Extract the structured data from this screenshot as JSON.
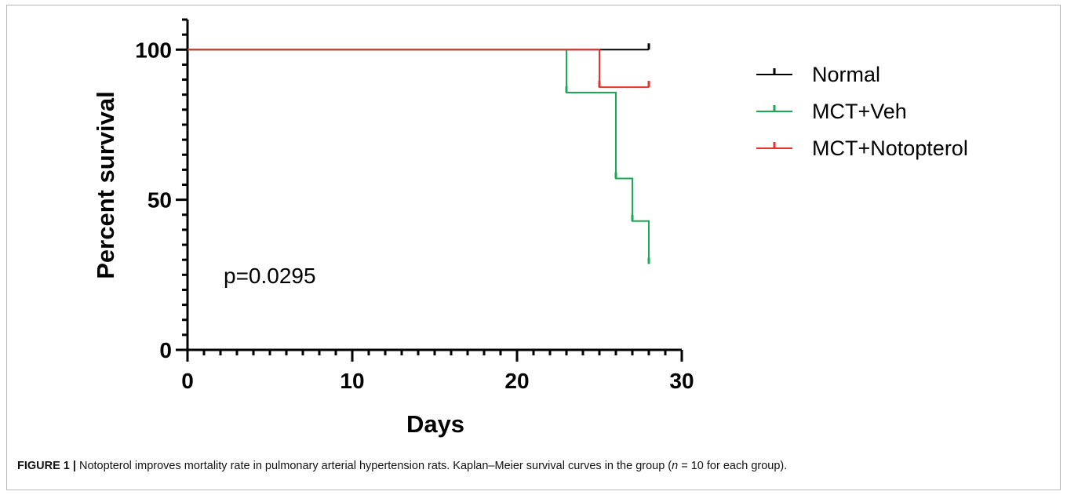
{
  "chart_data": {
    "type": "line",
    "subtype": "kaplan-meier-step",
    "xlabel": "Days",
    "ylabel": "Percent survival",
    "xlim": [
      0,
      30
    ],
    "ylim": [
      0,
      110
    ],
    "x_ticks": [
      0,
      10,
      20,
      30
    ],
    "x_minor_step": 1,
    "y_ticks": [
      0,
      50,
      100
    ],
    "y_minor_step": 5,
    "grid": false,
    "legend_position": "right",
    "annotation": "p=0.0295",
    "series": [
      {
        "name": "Normal",
        "color": "#000000",
        "points": [
          [
            0,
            100
          ],
          [
            28,
            100
          ]
        ],
        "censor": [
          [
            28,
            100
          ]
        ]
      },
      {
        "name": "MCT+Veh",
        "color": "#1aaa55",
        "points": [
          [
            0,
            100
          ],
          [
            23,
            100
          ],
          [
            23,
            85.7
          ],
          [
            26,
            85.7
          ],
          [
            26,
            57.1
          ],
          [
            27,
            57.1
          ],
          [
            27,
            42.9
          ],
          [
            28,
            42.9
          ],
          [
            28,
            28.6
          ]
        ],
        "censor": [
          [
            23,
            85.7
          ],
          [
            26,
            57.1
          ],
          [
            27,
            42.9
          ],
          [
            28,
            28.6
          ]
        ]
      },
      {
        "name": "MCT+Notopterol",
        "color": "#e8332a",
        "points": [
          [
            0,
            100
          ],
          [
            25,
            100
          ],
          [
            25,
            87.5
          ],
          [
            28,
            87.5
          ]
        ],
        "censor": [
          [
            25,
            87.5
          ],
          [
            28,
            87.5
          ]
        ]
      }
    ]
  },
  "caption": {
    "label": "FIGURE 1 |",
    "text_before_n": " Notopterol improves mortality rate in pulmonary arterial hypertension rats. Kaplan–Meier survival curves in the group (",
    "n_symbol": "n",
    "text_after_n": " = 10 for each group)."
  }
}
